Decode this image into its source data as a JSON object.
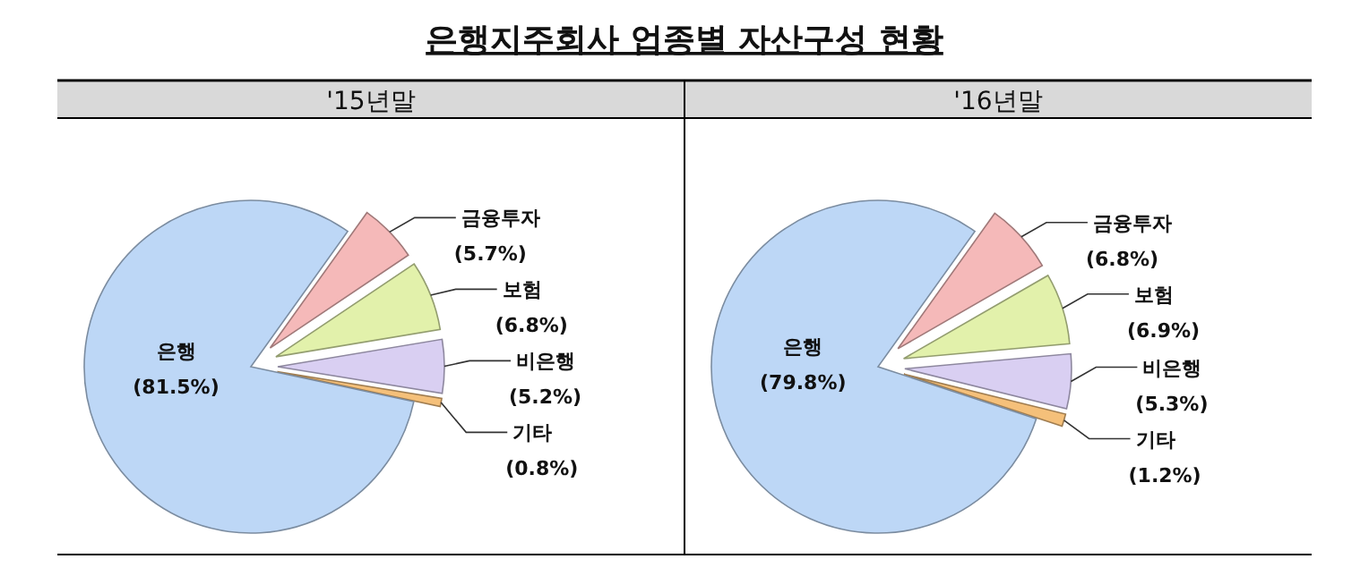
{
  "chart_data": [
    {
      "type": "pie",
      "title": "은행지주회사 업종별 자산구성 현황",
      "subtitle": "'15년말",
      "categories": [
        "금융투자",
        "보험",
        "비은행",
        "기타",
        "은행"
      ],
      "values": [
        5.7,
        6.8,
        5.2,
        0.8,
        81.5
      ],
      "value_labels": [
        "(5.7%)",
        "(6.8%)",
        "(5.2%)",
        "(0.8%)",
        "(81.5%)"
      ],
      "colors": [
        "#f5b9b9",
        "#e2f1ab",
        "#d9cff2",
        "#f5c07a",
        "#bdd7f6"
      ]
    },
    {
      "type": "pie",
      "subtitle": "'16년말",
      "categories": [
        "금융투자",
        "보험",
        "비은행",
        "기타",
        "은행"
      ],
      "values": [
        6.8,
        6.9,
        5.3,
        1.2,
        79.8
      ],
      "value_labels": [
        "(6.8%)",
        "(6.9%)",
        "(5.3%)",
        "(1.2%)",
        "(79.8%)"
      ],
      "colors": [
        "#f5b9b9",
        "#e2f1ab",
        "#d9cff2",
        "#f5c07a",
        "#bdd7f6"
      ]
    }
  ]
}
